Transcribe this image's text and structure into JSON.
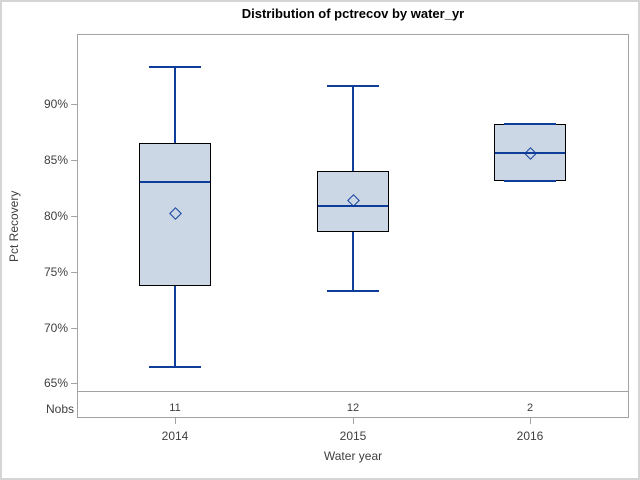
{
  "title": "Distribution of pctrecov by water_yr",
  "y_axis": {
    "label": "Pct Recovery",
    "ticks": [
      {
        "label": "90%",
        "value": 90
      },
      {
        "label": "85%",
        "value": 85
      },
      {
        "label": "80%",
        "value": 80
      },
      {
        "label": "75%",
        "value": 75
      },
      {
        "label": "70%",
        "value": 70
      },
      {
        "label": "65%",
        "value": 65
      }
    ]
  },
  "x_axis": {
    "label": "Water year",
    "categories": [
      "2014",
      "2015",
      "2016"
    ]
  },
  "nobs_row": {
    "label": "Nobs",
    "values": [
      "11",
      "12",
      "2"
    ]
  },
  "colors": {
    "box_fill": "#ccd7e6",
    "box_border": "#000000",
    "accent_blue": "#0e3d9a",
    "frame_gray": "#a3a3a3",
    "text": "#3f3f3f",
    "title_text": "#000000",
    "outer_border": "#d5d5d5",
    "background": "#ffffff"
  },
  "chart_data": {
    "type": "box",
    "title": "Distribution of pctrecov by water_yr",
    "xlabel": "Water year",
    "ylabel": "Pct Recovery",
    "ylim": [
      64,
      96.5
    ],
    "y_ticks": [
      65,
      70,
      75,
      80,
      85,
      90
    ],
    "y_tick_format": "percent",
    "grid": false,
    "legend": "none",
    "categories": [
      "2014",
      "2015",
      "2016"
    ],
    "nobs": [
      11,
      12,
      2
    ],
    "series": [
      {
        "category": "2014",
        "n": 11,
        "whisker_low": 66.5,
        "q1": 73.7,
        "median": 83.0,
        "mean": 80.2,
        "q3": 86.5,
        "whisker_high": 93.3
      },
      {
        "category": "2015",
        "n": 12,
        "whisker_low": 73.3,
        "q1": 78.6,
        "median": 80.9,
        "mean": 81.4,
        "q3": 84.0,
        "whisker_high": 91.6
      },
      {
        "category": "2016",
        "n": 2,
        "whisker_low": 83.1,
        "q1": 83.1,
        "median": 85.6,
        "mean": 85.6,
        "q3": 88.2,
        "whisker_high": 88.2
      }
    ]
  }
}
